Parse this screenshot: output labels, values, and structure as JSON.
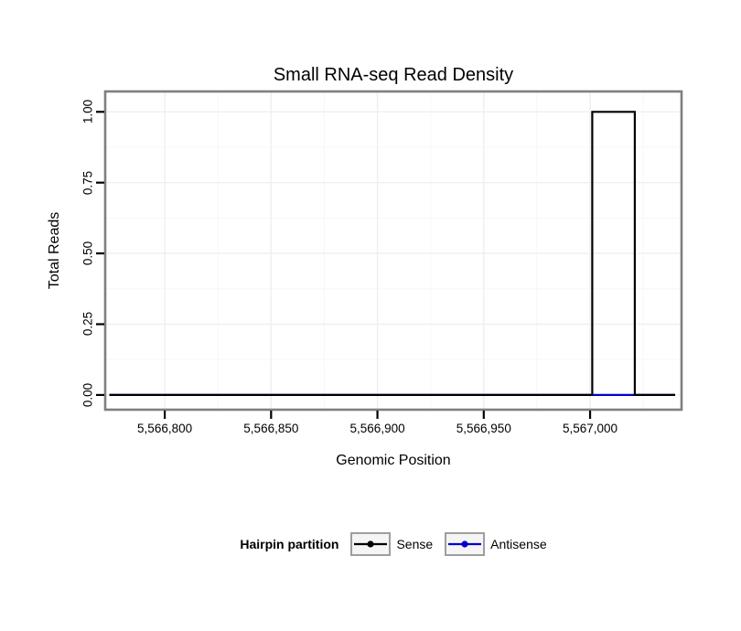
{
  "chart_data": {
    "type": "area",
    "title": "Small RNA-seq Read Density",
    "xlabel": "Genomic Position",
    "ylabel": "Total Reads",
    "xlim": [
      5566772,
      5567043
    ],
    "ylim": [
      -0.052,
      1.072
    ],
    "x_ticks": [
      5566800,
      5566850,
      5566900,
      5566950,
      5567000
    ],
    "x_tick_labels": [
      "5,566,800",
      "5,566,850",
      "5,566,900",
      "5,566,950",
      "5,567,000"
    ],
    "x_minor_ticks": [
      5566825,
      5566875,
      5566925,
      5566975,
      5567025
    ],
    "y_ticks": [
      0,
      0.25,
      0.5,
      0.75,
      1
    ],
    "y_tick_labels": [
      "0.00",
      "0.25",
      "0.50",
      "0.75",
      "1.00"
    ],
    "y_minor_ticks": [
      0.125,
      0.375,
      0.625,
      0.875
    ],
    "grid": true,
    "colors": {
      "sense": "#000000",
      "antisense": "#0000CD",
      "panel_border": "#7f7f7f",
      "grid_major": "#efefef",
      "grid_minor": "#f7f7f7",
      "tick": "#000000",
      "legend_key_bg": "#f5f5f5",
      "legend_key_border": "#9e9e9e"
    },
    "series": [
      {
        "name": "Antisense",
        "color": "#0000CD",
        "points": [
          [
            5566774,
            0
          ],
          [
            5567040,
            0
          ]
        ]
      },
      {
        "name": "Sense",
        "color": "#000000",
        "points": [
          [
            5566774,
            0
          ],
          [
            5567001,
            0
          ],
          [
            5567001,
            1
          ],
          [
            5567021,
            1
          ],
          [
            5567021,
            0
          ],
          [
            5567040,
            0
          ]
        ]
      }
    ],
    "legend": {
      "title": "Hairpin partition",
      "position": "bottom",
      "entries": [
        {
          "name": "Sense",
          "color": "#000000"
        },
        {
          "name": "Antisense",
          "color": "#0000CD"
        }
      ]
    }
  }
}
